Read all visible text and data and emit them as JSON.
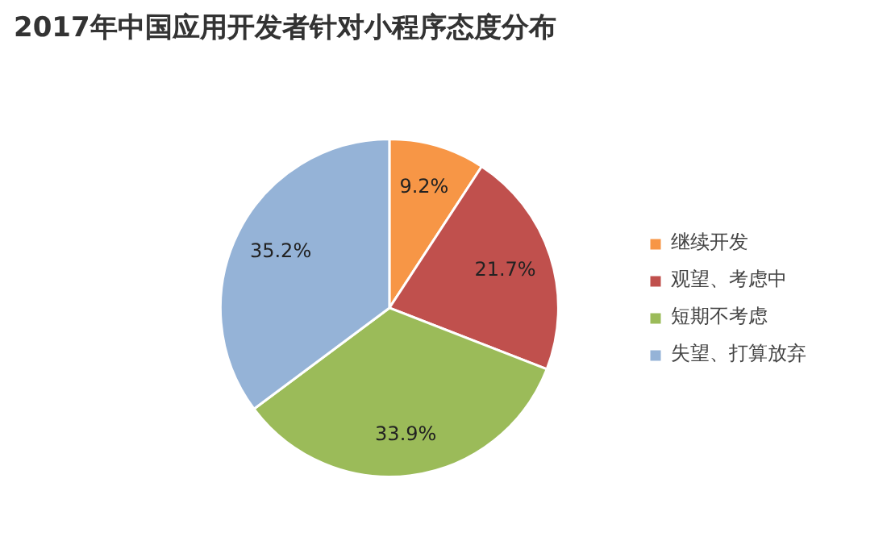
{
  "chart_data": {
    "type": "pie",
    "title": "2017年中国应用开发者针对小程序态度分布",
    "categories": [
      "继续开发",
      "观望、考虑中",
      "短期不考虑",
      "失望、打算放弃"
    ],
    "values": [
      9.2,
      21.7,
      33.9,
      35.2
    ],
    "value_labels": [
      "9.2%",
      "21.7%",
      "33.9%",
      "35.2%"
    ],
    "colors": [
      "#f79646",
      "#c0504d",
      "#9bbb59",
      "#95b3d7"
    ],
    "legend": "right"
  }
}
